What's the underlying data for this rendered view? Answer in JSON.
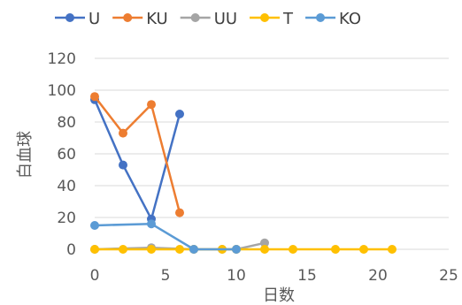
{
  "chart_data": {
    "type": "scatter",
    "xlabel": "日数",
    "ylabel": "白血球",
    "xlim": [
      0,
      25
    ],
    "ylim": [
      0,
      120
    ],
    "xticks": [
      0,
      5,
      10,
      15,
      20,
      25
    ],
    "yticks": [
      0,
      20,
      40,
      60,
      80,
      100,
      120
    ],
    "grid": "horizontal",
    "legend_position": "top",
    "series": [
      {
        "name": "U",
        "color": "#4472C4",
        "points": [
          [
            0,
            94
          ],
          [
            2,
            53
          ],
          [
            4,
            19
          ],
          [
            6,
            85
          ]
        ]
      },
      {
        "name": "KU",
        "color": "#ED7D31",
        "points": [
          [
            0,
            96
          ],
          [
            2,
            73
          ],
          [
            4,
            91
          ],
          [
            6,
            23
          ]
        ]
      },
      {
        "name": "UU",
        "color": "#A5A5A5",
        "points": [
          [
            0,
            0
          ],
          [
            4,
            1
          ],
          [
            7,
            0
          ],
          [
            9,
            0
          ],
          [
            10,
            0
          ],
          [
            12,
            4
          ]
        ]
      },
      {
        "name": "T",
        "color": "#FFC000",
        "points": [
          [
            0,
            0
          ],
          [
            2,
            0
          ],
          [
            4,
            0
          ],
          [
            6,
            0
          ],
          [
            7,
            0
          ],
          [
            9,
            0
          ],
          [
            10,
            0
          ],
          [
            12,
            0
          ],
          [
            14,
            0
          ],
          [
            17,
            0
          ],
          [
            19,
            0
          ],
          [
            21,
            0
          ]
        ]
      },
      {
        "name": "KO",
        "color": "#5B9BD5",
        "points": [
          [
            0,
            15
          ],
          [
            4,
            16
          ],
          [
            7,
            0
          ],
          [
            10,
            0
          ]
        ]
      }
    ]
  }
}
